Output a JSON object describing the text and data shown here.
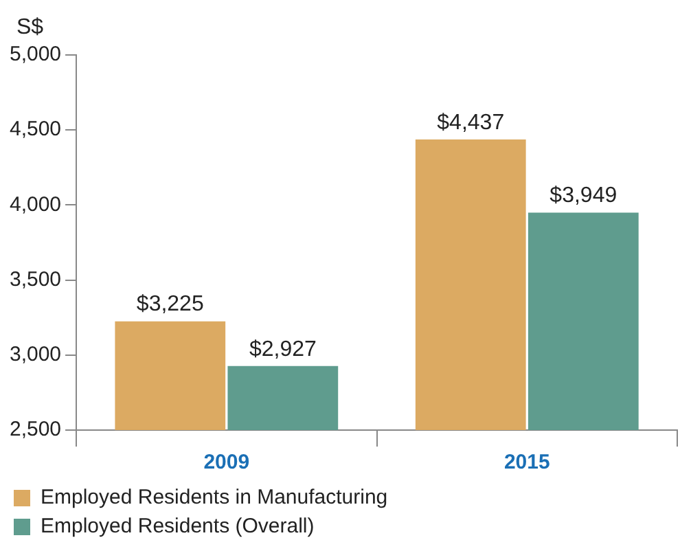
{
  "chart_data": {
    "type": "bar",
    "ylabel": "S$",
    "categories": [
      "2009",
      "2015"
    ],
    "series": [
      {
        "name": "Employed Residents in Manufacturing",
        "color": "#dcaa62",
        "values": [
          3225,
          4437
        ],
        "value_labels": [
          "$3,225",
          "$4,437"
        ]
      },
      {
        "name": "Employed Residents (Overall)",
        "color": "#5f9c8e",
        "values": [
          2927,
          3949
        ],
        "value_labels": [
          "$2,927",
          "$3,949"
        ]
      }
    ],
    "ylim": [
      2500,
      5000
    ],
    "yticks": [
      {
        "value": 2500,
        "label": "2,500"
      },
      {
        "value": 3000,
        "label": "3,000"
      },
      {
        "value": 3500,
        "label": "3,500"
      },
      {
        "value": 4000,
        "label": "4,000"
      },
      {
        "value": 4500,
        "label": "4,500"
      },
      {
        "value": 5000,
        "label": "5,000"
      }
    ],
    "grid": false,
    "legend": "bottom"
  }
}
